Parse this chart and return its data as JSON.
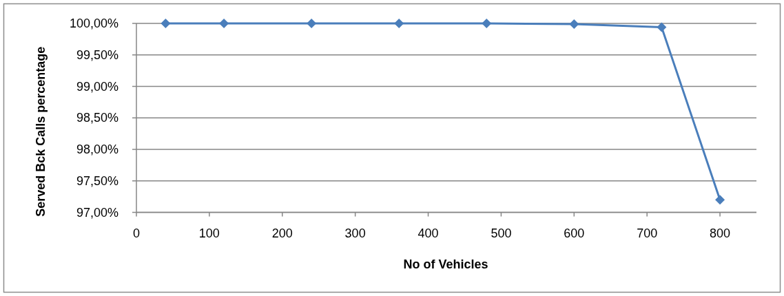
{
  "chart_data": {
    "type": "line",
    "xlabel": "No  of Vehicles",
    "ylabel": "Served Bck Calls percentage",
    "x": [
      40,
      120,
      240,
      360,
      480,
      600,
      720,
      800
    ],
    "series": [
      {
        "color": "#4a7ebb",
        "values": [
          100,
          100,
          100,
          100,
          100,
          99.99,
          99.94,
          97.2
        ]
      }
    ],
    "xlim": [
      0,
      850
    ],
    "xticks": [
      0,
      100,
      200,
      300,
      400,
      500,
      600,
      700,
      800
    ],
    "ylim": [
      97,
      100
    ],
    "yticks": [
      {
        "value": 97,
        "label": "97,00%"
      },
      {
        "value": 97.5,
        "label": "97,50%"
      },
      {
        "value": 98,
        "label": "98,00%"
      },
      {
        "value": 98.5,
        "label": "98,50%"
      },
      {
        "value": 99,
        "label": "99,00%"
      },
      {
        "value": 99.5,
        "label": "99,50%"
      },
      {
        "value": 100,
        "label": "100,00%"
      }
    ],
    "grid": "y",
    "marker": "diamond",
    "line_style": "solid"
  }
}
